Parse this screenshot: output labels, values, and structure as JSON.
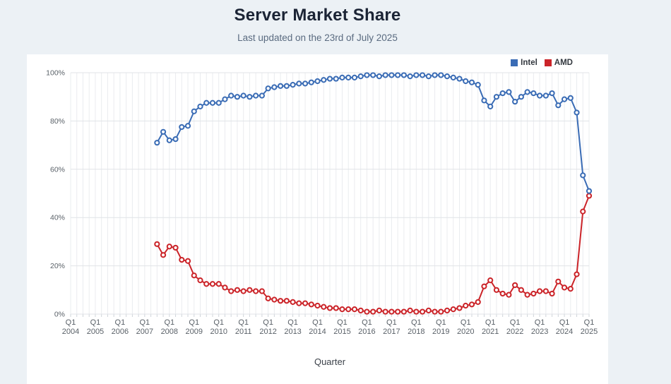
{
  "header": {
    "title": "Server Market Share",
    "subtitle": "Last updated on the 23rd of July 2025"
  },
  "theme": {
    "page_background": "#ecf1f5",
    "card_background": "#ffffff",
    "title_color": "#1b2435",
    "subtitle_color": "#5a6b80",
    "axis_text_color": "#5a6168",
    "grid_vertical_color": "#eaecef",
    "grid_horizontal_color": "#e0e3e7",
    "intel_color": "#3a6cb5",
    "amd_color": "#cb2429"
  },
  "chart_data": {
    "type": "line",
    "title": "Server Market Share",
    "subtitle": "Last updated on the 23rd of July 2025",
    "xlabel": "Quarter",
    "ylabel": "",
    "grid": true,
    "legend_position": "top-right",
    "marker_style": "open-circle",
    "x_axis": {
      "tick_quarter_label": "Q1",
      "tick_years": [
        "2004",
        "2005",
        "2006",
        "2007",
        "2008",
        "2009",
        "2010",
        "2011",
        "2012",
        "2013",
        "2014",
        "2015",
        "2016",
        "2017",
        "2018",
        "2019",
        "2020",
        "2021",
        "2022",
        "2023",
        "2024",
        "2025"
      ],
      "quarters_per_year": 4,
      "range": [
        "Q1 2004",
        "Q1 2025"
      ]
    },
    "y_axis": {
      "min": 0,
      "max": 100,
      "tick_step": 20,
      "tick_labels": [
        "0%",
        "20%",
        "40%",
        "60%",
        "80%",
        "100%"
      ]
    },
    "data_start_quarter": "Q3 2007",
    "series": [
      {
        "name": "Intel",
        "color": "#3a6cb5",
        "start_index": 14,
        "values": [
          71,
          75.5,
          72,
          72.5,
          77.5,
          78,
          84,
          86,
          87.5,
          87.5,
          87.5,
          89,
          90.5,
          90,
          90.5,
          90,
          90.5,
          90.5,
          93.5,
          94,
          94.5,
          94.5,
          95,
          95.5,
          95.5,
          96,
          96.5,
          97,
          97.5,
          97.5,
          98,
          98,
          98,
          98.5,
          99,
          99,
          98.5,
          99,
          99,
          99,
          99,
          98.5,
          99,
          99,
          98.5,
          99,
          99,
          98.5,
          98,
          97.5,
          96.5,
          96,
          95,
          88.5,
          86,
          90,
          91.5,
          92,
          88,
          90,
          92,
          91.5,
          90.5,
          90.5,
          91.5,
          86.5,
          89,
          89.5,
          83.5,
          57.5,
          51
        ]
      },
      {
        "name": "AMD",
        "color": "#cb2429",
        "start_index": 14,
        "values": [
          29,
          24.5,
          28,
          27.5,
          22.5,
          22,
          16,
          14,
          12.5,
          12.5,
          12.5,
          11,
          9.5,
          10,
          9.5,
          10,
          9.5,
          9.5,
          6.5,
          6,
          5.5,
          5.5,
          5,
          4.5,
          4.5,
          4,
          3.5,
          3,
          2.5,
          2.5,
          2,
          2,
          2,
          1.5,
          1,
          1,
          1.5,
          1,
          1,
          1,
          1,
          1.5,
          1,
          1,
          1.5,
          1,
          1,
          1.5,
          2,
          2.5,
          3.5,
          4,
          5,
          11.5,
          14,
          10,
          8.5,
          8,
          12,
          10,
          8,
          8.5,
          9.5,
          9.5,
          8.5,
          13.5,
          11,
          10.5,
          16.5,
          42.5,
          49
        ]
      }
    ]
  }
}
